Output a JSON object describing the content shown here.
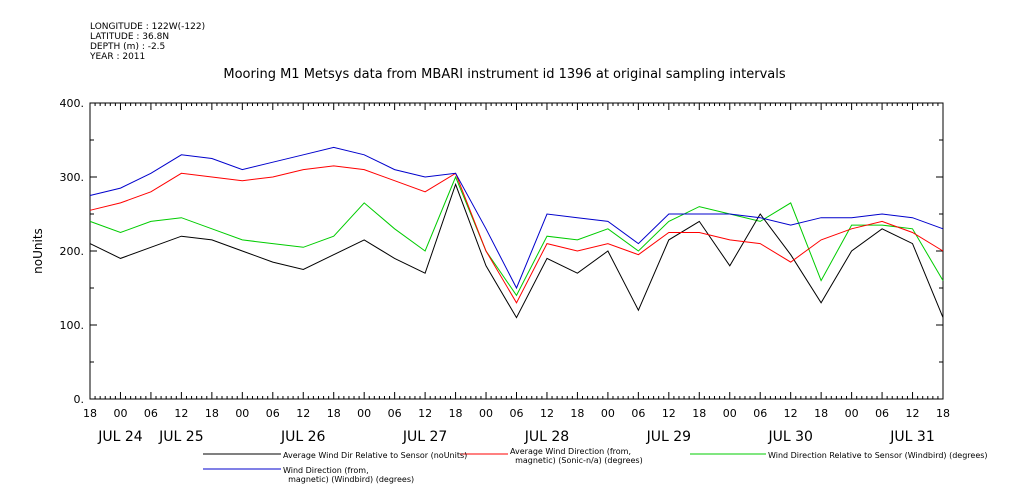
{
  "header": {
    "longitude": "LONGITUDE : 122W(-122)",
    "latitude": "LATITUDE : 36.8N",
    "depth": "DEPTH (m) : -2.5",
    "year": "YEAR : 2011"
  },
  "chart_data": {
    "type": "line",
    "title": "Mooring M1 Metsys data from MBARI instrument id 1396 at original sampling intervals",
    "xlabel": "",
    "ylabel": "noUnits",
    "ylim": [
      0,
      400
    ],
    "yticks": [
      0,
      100,
      200,
      300,
      400
    ],
    "ytick_labels": [
      "0.",
      "100.",
      "200.",
      "300.",
      "400."
    ],
    "xlim_hours": [
      0,
      168
    ],
    "x_hour_ticks": [
      "18",
      "00",
      "06",
      "12",
      "18",
      "00",
      "06",
      "12",
      "18",
      "00",
      "06",
      "12",
      "18",
      "00",
      "06",
      "12",
      "18",
      "00",
      "06",
      "12",
      "18",
      "00",
      "06",
      "12",
      "18",
      "00",
      "06",
      "12",
      "18"
    ],
    "x_day_labels": [
      {
        "label": "JUL 24",
        "hour": 6
      },
      {
        "label": "JUL 25",
        "hour": 18
      },
      {
        "label": "JUL 26",
        "hour": 42
      },
      {
        "label": "JUL 27",
        "hour": 66
      },
      {
        "label": "JUL 28",
        "hour": 90
      },
      {
        "label": "JUL 29",
        "hour": 114
      },
      {
        "label": "JUL 30",
        "hour": 138
      },
      {
        "label": "JUL 31",
        "hour": 162
      }
    ],
    "x_hours": [
      0,
      6,
      12,
      18,
      24,
      30,
      36,
      42,
      48,
      54,
      60,
      66,
      72,
      78,
      84,
      90,
      96,
      102,
      108,
      114,
      120,
      126,
      132,
      138,
      144,
      150,
      156,
      162,
      168
    ],
    "series": [
      {
        "name": "Average Wind Dir Relative to Sensor (noUnits)",
        "color": "#000000",
        "values": [
          210,
          190,
          205,
          220,
          215,
          200,
          185,
          175,
          195,
          215,
          190,
          170,
          290,
          180,
          110,
          190,
          170,
          200,
          120,
          215,
          240,
          180,
          250,
          195,
          130,
          200,
          230,
          210,
          110
        ]
      },
      {
        "name": "Average Wind Direction (from, magnetic) (Sonic-n/a) (degrees)",
        "color": "#ff0000",
        "values": [
          255,
          265,
          280,
          305,
          300,
          295,
          300,
          310,
          315,
          310,
          295,
          280,
          305,
          200,
          130,
          210,
          200,
          210,
          195,
          225,
          225,
          215,
          210,
          185,
          215,
          230,
          240,
          225,
          200
        ]
      },
      {
        "name": "Wind Direction Relative to Sensor (Windbird) (degrees)",
        "color": "#00cc00",
        "values": [
          240,
          225,
          240,
          245,
          230,
          215,
          210,
          205,
          220,
          265,
          230,
          200,
          300,
          200,
          140,
          220,
          215,
          230,
          200,
          240,
          260,
          250,
          240,
          265,
          160,
          235,
          235,
          230,
          160
        ]
      },
      {
        "name": "Wind Direction (from, magnetic) (Windbird) (degrees)",
        "color": "#0000cc",
        "values": [
          275,
          285,
          305,
          330,
          325,
          310,
          320,
          330,
          340,
          330,
          310,
          300,
          305,
          230,
          150,
          250,
          245,
          240,
          210,
          250,
          250,
          250,
          245,
          235,
          245,
          245,
          250,
          245,
          230
        ]
      }
    ],
    "legend": [
      {
        "label": "Average Wind Dir Relative to Sensor (noUnits)",
        "color": "#000000"
      },
      {
        "label": "Average Wind Direction (from,\n  magnetic) (Sonic-n/a) (degrees)",
        "color": "#ff0000"
      },
      {
        "label": "Wind Direction Relative to Sensor (Windbird) (degrees)",
        "color": "#00cc00"
      },
      {
        "label": "Wind Direction (from,\n  magnetic) (Windbird) (degrees)",
        "color": "#0000cc"
      }
    ],
    "grid": false,
    "legend_position": "bottom"
  }
}
